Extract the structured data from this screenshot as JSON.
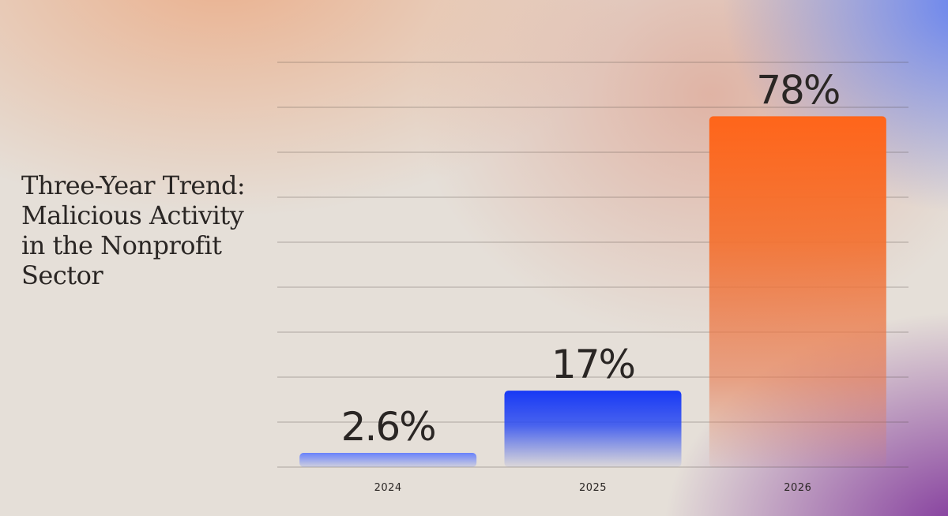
{
  "chart_data": {
    "type": "bar",
    "title_lead": "Three-Year Trend:",
    "title_rest": "Malicious Activity in the Nonprofit Sector",
    "categories": [
      "2024",
      "2025",
      "2026"
    ],
    "values": [
      2.6,
      17,
      78
    ],
    "value_labels": [
      "2.6%",
      "17%",
      "78%"
    ],
    "ylim": [
      0,
      90
    ],
    "grid": true,
    "bar_colors": [
      "#5b78ff",
      "#1738f5",
      "#ff6a1a"
    ]
  }
}
